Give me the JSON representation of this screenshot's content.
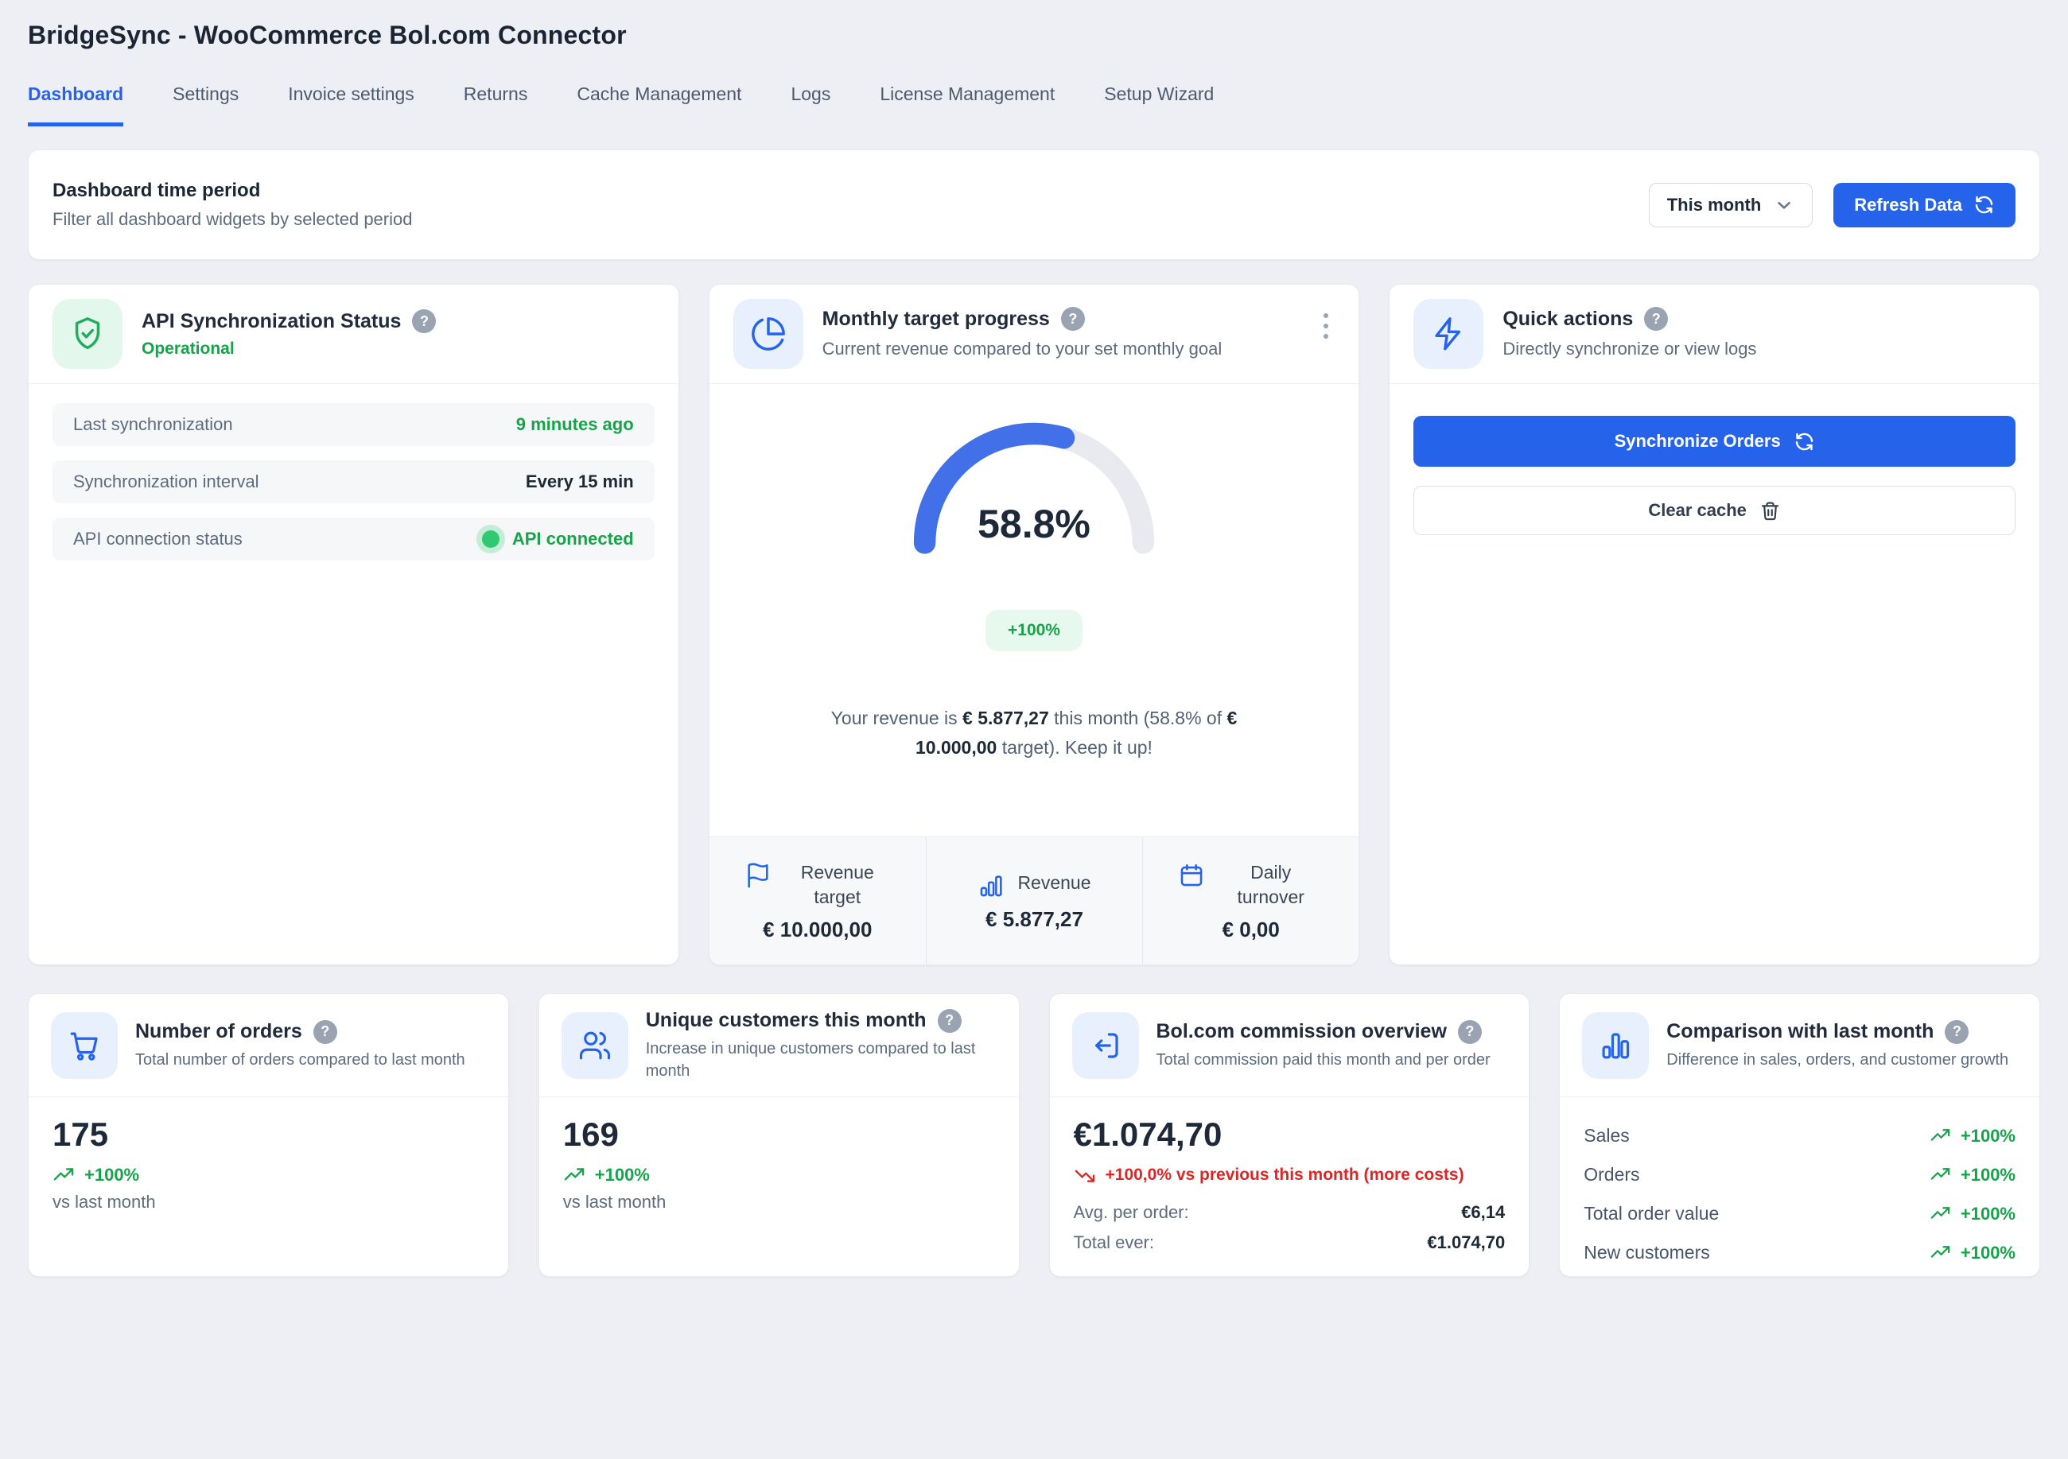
{
  "app": {
    "title": "BridgeSync - WooCommerce Bol.com Connector"
  },
  "tabs": [
    {
      "label": "Dashboard",
      "active": true
    },
    {
      "label": "Settings",
      "active": false
    },
    {
      "label": "Invoice settings",
      "active": false
    },
    {
      "label": "Returns",
      "active": false
    },
    {
      "label": "Cache Management",
      "active": false
    },
    {
      "label": "Logs",
      "active": false
    },
    {
      "label": "License Management",
      "active": false
    },
    {
      "label": "Setup Wizard",
      "active": false
    }
  ],
  "period_bar": {
    "title": "Dashboard time period",
    "subtitle": "Filter all dashboard widgets by selected period",
    "selected_period": "This month",
    "refresh_label": "Refresh Data"
  },
  "sync_status": {
    "title": "API Synchronization Status",
    "help": "?",
    "status": "Operational",
    "rows": [
      {
        "label": "Last synchronization",
        "value": "9 minutes ago",
        "color": "green",
        "dot": false
      },
      {
        "label": "Synchronization interval",
        "value": "Every 15 min",
        "color": "dark",
        "dot": false
      },
      {
        "label": "API connection status",
        "value": "API connected",
        "color": "green",
        "dot": true
      }
    ]
  },
  "monthly_target": {
    "title": "Monthly target progress",
    "help": "?",
    "subtitle": "Current revenue compared to your set monthly goal",
    "badge": "+100%",
    "chart_data": {
      "type": "gauge",
      "percent": 58.8,
      "percent_label": "58.8%",
      "revenue": "€ 5.877,27",
      "target": "€ 10.000,00",
      "track_color": "#e8eaef",
      "progress_color": "#4170e8"
    },
    "revenue_text": {
      "t1": "Your revenue is ",
      "amount": "€ 5.877,27",
      "t2": " this month (58.8% of ",
      "target": "€ 10.000,00",
      "t3": " target). Keep it up!"
    },
    "footer": [
      {
        "icon": "flag",
        "label": "Revenue target",
        "value": "€ 10.000,00"
      },
      {
        "icon": "bars",
        "label": "Revenue",
        "value": "€ 5.877,27"
      },
      {
        "icon": "calendar",
        "label": "Daily turnover",
        "value": "€ 0,00"
      }
    ]
  },
  "quick_actions": {
    "title": "Quick actions",
    "help": "?",
    "subtitle": "Directly synchronize or view logs",
    "sync_button": "Synchronize Orders",
    "clear_button": "Clear cache"
  },
  "orders_card": {
    "title": "Number of orders",
    "help": "?",
    "subtitle": "Total number of orders compared to last month",
    "value": "175",
    "change": "+100%",
    "note": "vs last month"
  },
  "customers_card": {
    "title": "Unique customers this month",
    "help": "?",
    "subtitle": "Increase in unique customers compared to last month",
    "value": "169",
    "change": "+100%",
    "note": "vs last month"
  },
  "commission_card": {
    "title": "Bol.com commission overview",
    "help": "?",
    "subtitle": "Total commission paid this month and per order",
    "value": "€1.074,70",
    "change": "+100,0% vs previous this month (more costs)",
    "rows": [
      {
        "label": "Avg. per order:",
        "value": "€6,14"
      },
      {
        "label": "Total ever:",
        "value": "€1.074,70"
      }
    ]
  },
  "comparison_card": {
    "title": "Comparison with last month",
    "help": "?",
    "subtitle": "Difference in sales, orders, and customer growth",
    "rows": [
      {
        "label": "Sales",
        "value": "+100%"
      },
      {
        "label": "Orders",
        "value": "+100%"
      },
      {
        "label": "Total order value",
        "value": "+100%"
      },
      {
        "label": "New customers",
        "value": "+100%"
      }
    ]
  },
  "colors": {
    "accent_blue": "#2563eb",
    "gauge_blue": "#4170e8",
    "green": "#17a34a",
    "red": "#e02424",
    "page_bg": "#edeff4"
  }
}
